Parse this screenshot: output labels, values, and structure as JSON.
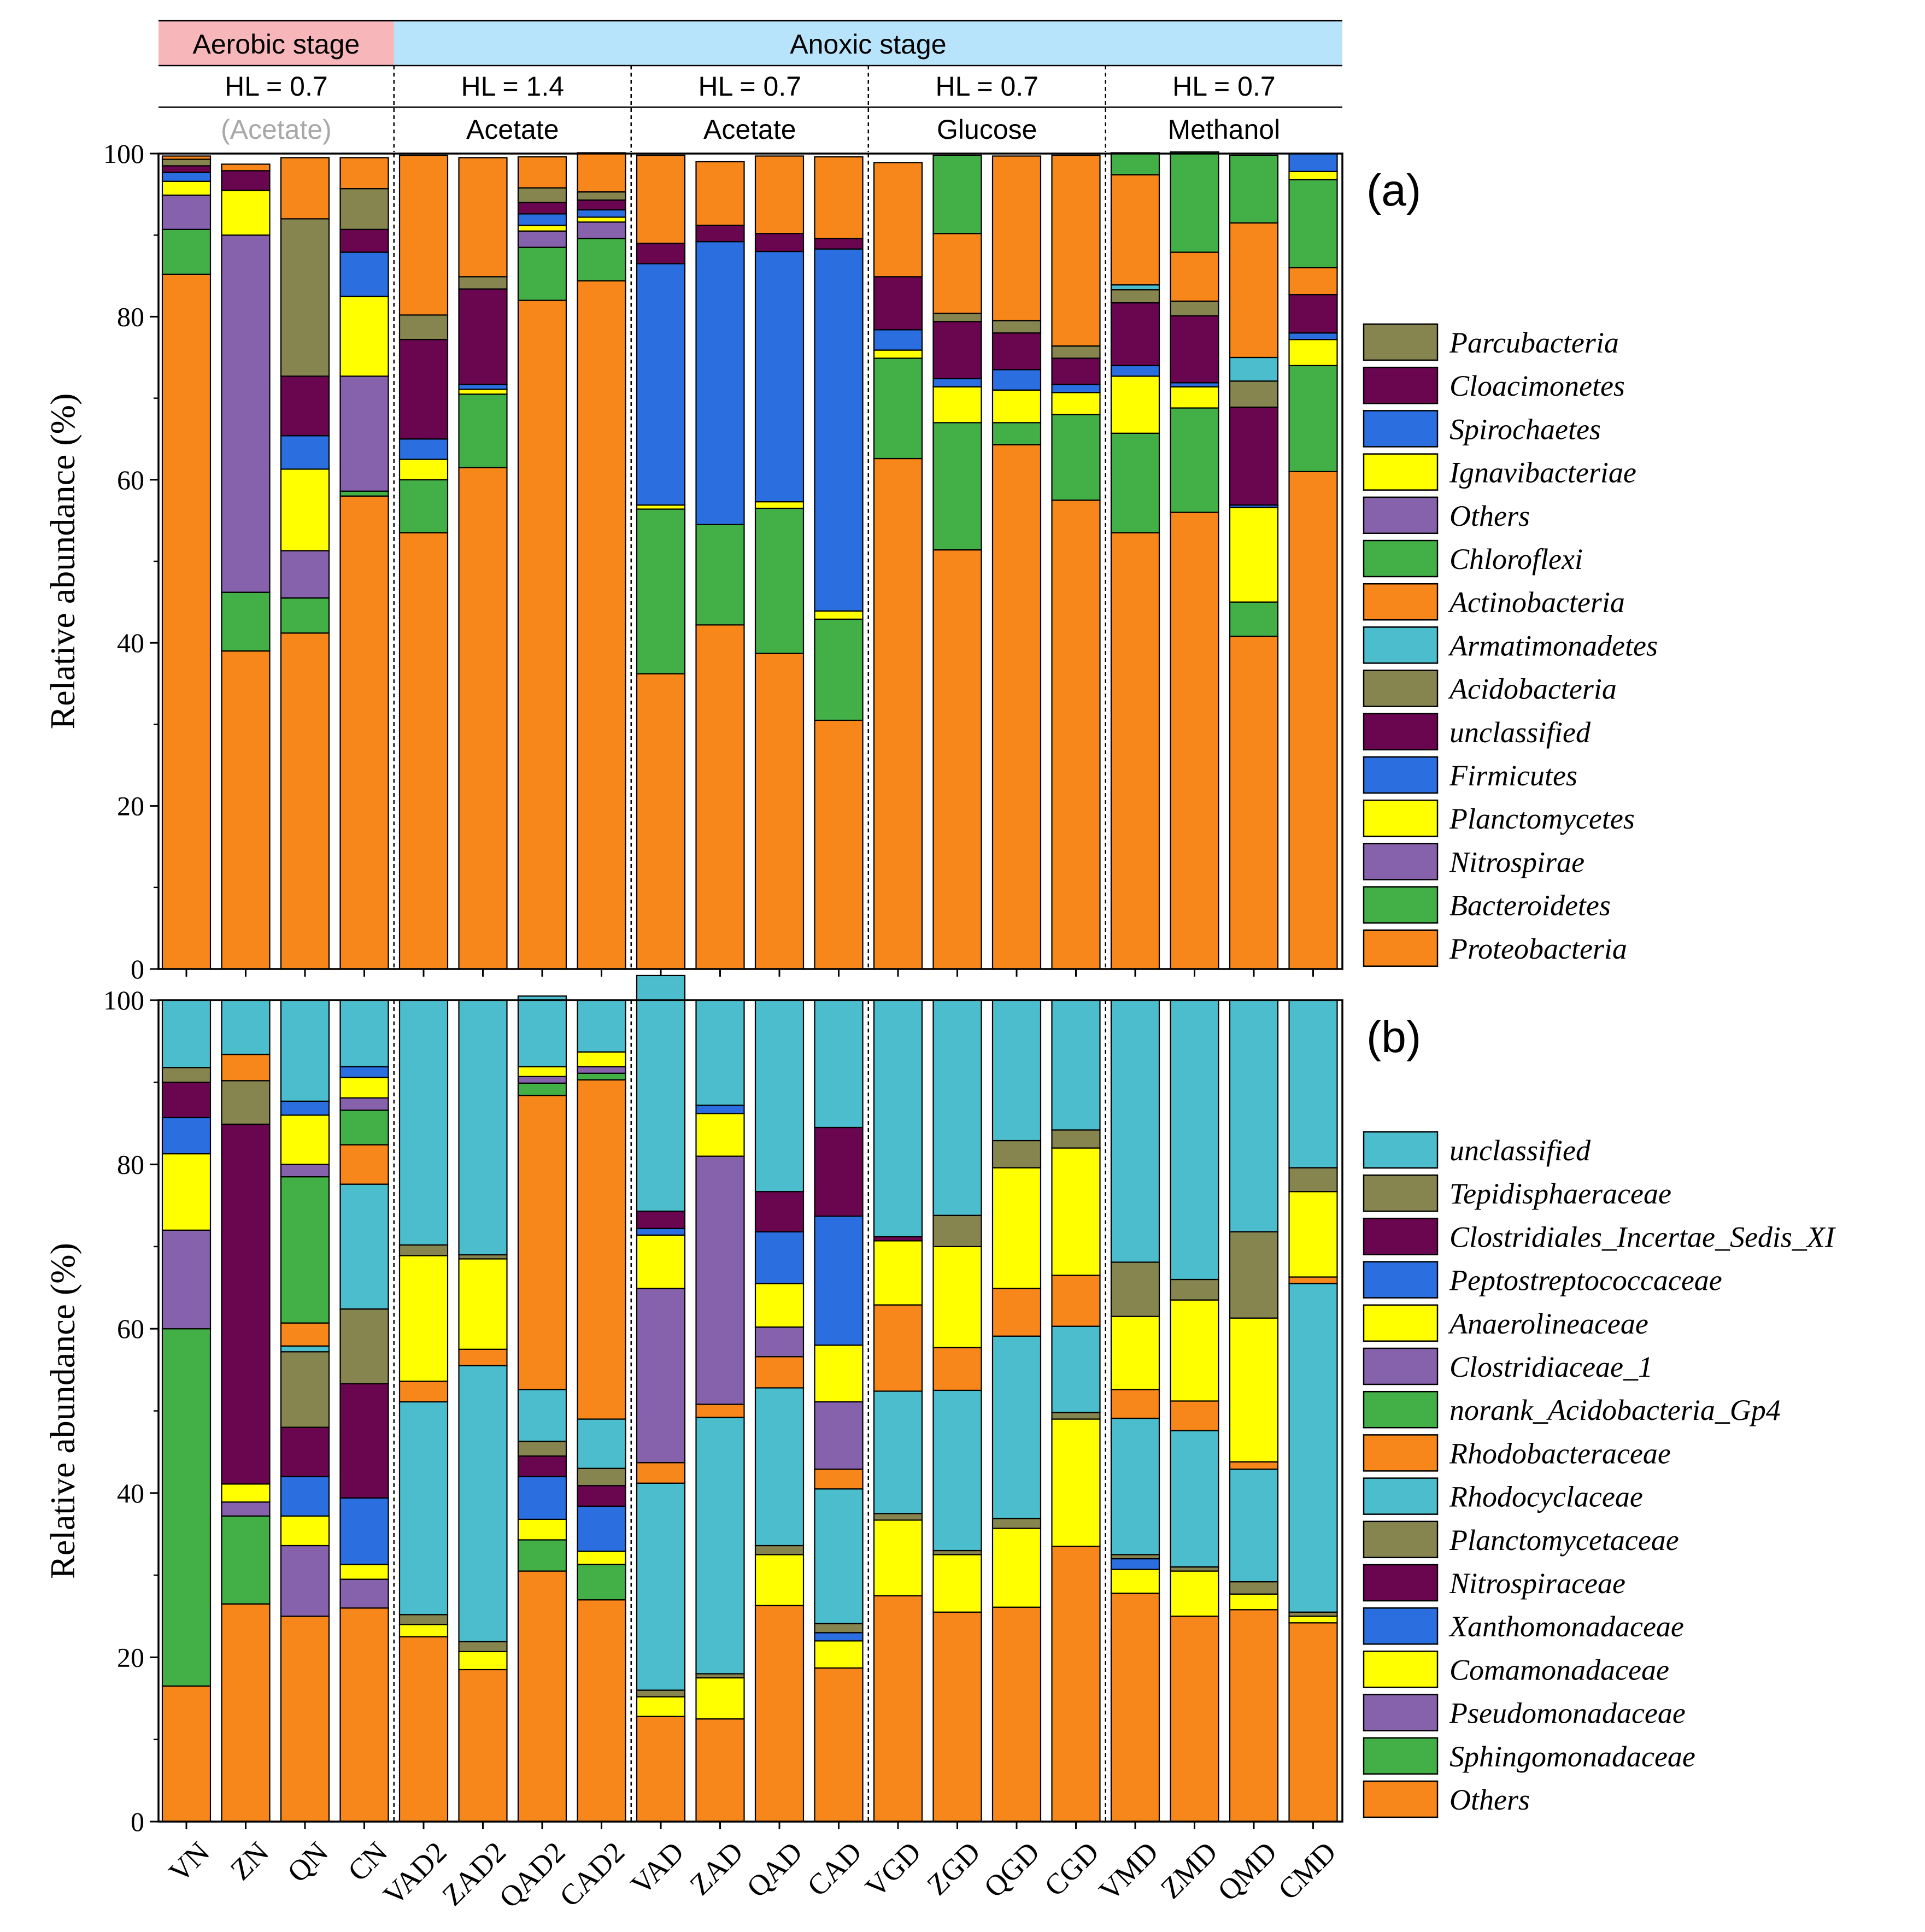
{
  "header": {
    "stages": [
      {
        "label": "Aerobic stage",
        "color": "#f7b6b9"
      },
      {
        "label": "Anoxic stage",
        "color": "#b7e3fb"
      }
    ],
    "groups": [
      {
        "hl": "HL = 0.7",
        "substrate": "(Acetate)",
        "substrate_color": "#a8a8a8"
      },
      {
        "hl": "HL = 1.4",
        "substrate": "Acetate",
        "substrate_color": "#000000"
      },
      {
        "hl": "HL = 0.7",
        "substrate": "Acetate",
        "substrate_color": "#000000"
      },
      {
        "hl": "HL = 0.7",
        "substrate": "Glucose",
        "substrate_color": "#000000"
      },
      {
        "hl": "HL = 0.7",
        "substrate": "Methanol",
        "substrate_color": "#000000"
      }
    ]
  },
  "chart_data": [
    {
      "type": "bar",
      "stacked": true,
      "panel_label": "(a)",
      "ylabel": "Relative abundance (%)",
      "ylim": [
        0,
        100
      ],
      "yticks": [
        0,
        20,
        40,
        60,
        80,
        100
      ],
      "categories": [
        "VN",
        "ZN",
        "QN",
        "CN",
        "VAD2",
        "ZAD2",
        "QAD2",
        "CAD2",
        "VAD",
        "ZAD",
        "QAD",
        "CAD",
        "VGD",
        "ZGD",
        "QGD",
        "CGD",
        "VMD",
        "ZMD",
        "QMD",
        "CMD"
      ],
      "series": [
        {
          "name": "Proteobacteria",
          "color": "#f7861b",
          "values": [
            85.2,
            39.0,
            41.2,
            58.0,
            53.5,
            61.5,
            82.0,
            84.4,
            36.2,
            42.2,
            38.7,
            30.5,
            62.6,
            51.4,
            64.3,
            57.5,
            53.5,
            56.0,
            40.8,
            61.0
          ]
        },
        {
          "name": "Bacteroidetes",
          "color": "#43b047",
          "values": [
            5.5,
            7.2,
            4.3,
            0.6,
            6.5,
            9.0,
            6.5,
            5.2,
            20.2,
            12.3,
            17.8,
            12.4,
            12.3,
            15.6,
            2.7,
            10.5,
            12.2,
            12.8,
            4.2,
            13.0
          ]
        },
        {
          "name": "Nitrospirae",
          "color": "#8762ac",
          "values": [
            4.2,
            43.8,
            5.8,
            14.1,
            0,
            0,
            2.0,
            2.0,
            0,
            0,
            0,
            0,
            0,
            0,
            0,
            0,
            0,
            0,
            0,
            0
          ]
        },
        {
          "name": "Planctomycetes",
          "color": "#ffff00",
          "values": [
            1.7,
            5.5,
            10.0,
            9.8,
            2.5,
            0.6,
            0.7,
            0.6,
            0.5,
            0,
            0.8,
            1.0,
            1.0,
            4.4,
            4.0,
            2.7,
            7.0,
            2.6,
            11.6,
            3.2
          ]
        },
        {
          "name": "Firmicutes",
          "color": "#2a6ee0",
          "values": [
            1.1,
            0,
            4.1,
            5.4,
            2.5,
            0.6,
            1.4,
            0.9,
            29.6,
            34.7,
            30.7,
            44.4,
            2.5,
            1.0,
            2.5,
            1.0,
            1.3,
            0.5,
            0.3,
            0.8
          ]
        },
        {
          "name": "unclassified",
          "color": "#6a0650",
          "values": [
            0.8,
            2.4,
            7.3,
            2.8,
            12.2,
            11.7,
            1.4,
            1.2,
            2.5,
            2.0,
            2.2,
            1.3,
            6.5,
            7.0,
            4.5,
            3.2,
            7.7,
            8.2,
            12.0,
            4.7
          ]
        },
        {
          "name": "Acidobacteria",
          "color": "#868550",
          "values": [
            0.8,
            0,
            19.3,
            5.0,
            3.0,
            1.5,
            1.8,
            1.0,
            0,
            0,
            0,
            0,
            0,
            1.0,
            1.5,
            1.5,
            1.6,
            1.8,
            3.2,
            0
          ]
        },
        {
          "name": "Armatimonadetes",
          "color": "#4bbdcc",
          "values": [
            0,
            0,
            0,
            0,
            0,
            0,
            0,
            0,
            0,
            0,
            0,
            0,
            0,
            0,
            0,
            0,
            0.6,
            0,
            2.9,
            0
          ]
        },
        {
          "name": "Actinobacteria",
          "color": "#f7861b",
          "values": [
            0.4,
            0.8,
            7.5,
            3.8,
            19.6,
            14.6,
            3.8,
            4.8,
            10.8,
            7.8,
            9.5,
            10.0,
            14.0,
            9.8,
            20.2,
            23.4,
            13.5,
            6.0,
            16.5,
            3.3
          ]
        },
        {
          "name": "Chloroflexi",
          "color": "#43b047",
          "values": [
            0,
            0,
            0,
            0,
            0,
            0,
            0,
            0,
            0,
            0,
            0,
            0,
            0,
            9.6,
            0,
            0,
            2.7,
            12.3,
            8.3,
            10.8
          ]
        },
        {
          "name": "Others",
          "color": "#8762ac",
          "values": [
            0,
            0,
            0,
            0,
            0,
            0,
            0,
            0,
            0,
            0,
            0,
            0,
            0,
            0,
            0,
            0,
            0,
            0,
            0,
            0
          ]
        },
        {
          "name": "Ignavibacteriae",
          "color": "#ffff00",
          "values": [
            0,
            0,
            0,
            0,
            0,
            0,
            0,
            0,
            0,
            0,
            0,
            0,
            0,
            0,
            0,
            0,
            0,
            0,
            0,
            1.0
          ]
        },
        {
          "name": "Spirochaetes",
          "color": "#2a6ee0",
          "values": [
            0,
            0,
            0,
            0,
            0,
            0,
            0,
            0,
            0,
            0,
            0,
            0,
            0,
            0,
            0,
            0,
            0,
            0,
            0,
            2.2
          ]
        },
        {
          "name": "Cloacimonetes",
          "color": "#6a0650",
          "values": [
            0,
            0,
            0,
            0,
            0,
            0,
            0,
            0,
            0,
            0,
            0,
            0,
            0,
            0,
            0,
            0,
            0,
            0,
            0,
            0
          ]
        },
        {
          "name": "Parcubacteria",
          "color": "#868550",
          "values": [
            0,
            0,
            0,
            0,
            0,
            0,
            0,
            0,
            0,
            0,
            0,
            0,
            0,
            0,
            0,
            0,
            0,
            0,
            0,
            0
          ]
        }
      ]
    },
    {
      "type": "bar",
      "stacked": true,
      "panel_label": "(b)",
      "ylabel": "Relative abundance (%)",
      "ylim": [
        0,
        100
      ],
      "yticks": [
        0,
        20,
        40,
        60,
        80,
        100
      ],
      "categories": [
        "VN",
        "ZN",
        "QN",
        "CN",
        "VAD2",
        "ZAD2",
        "QAD2",
        "CAD2",
        "VAD",
        "ZAD",
        "QAD",
        "CAD",
        "VGD",
        "ZGD",
        "QGD",
        "CGD",
        "VMD",
        "ZMD",
        "QMD",
        "CMD"
      ],
      "series": [
        {
          "name": "Others",
          "color": "#f7861b",
          "values": [
            16.5,
            26.5,
            25.0,
            26.0,
            22.5,
            18.5,
            30.5,
            27.0,
            12.8,
            12.5,
            26.3,
            18.7,
            27.5,
            25.5,
            26.1,
            33.5,
            27.8,
            25.0,
            25.8,
            24.2
          ]
        },
        {
          "name": "Sphingomonadaceae",
          "color": "#43b047",
          "values": [
            43.5,
            10.7,
            0,
            0,
            0,
            0,
            3.8,
            4.3,
            0,
            0,
            0,
            0,
            0,
            0,
            0,
            0,
            0,
            0,
            0,
            0
          ]
        },
        {
          "name": "Pseudomonadaceae",
          "color": "#8762ac",
          "values": [
            12.0,
            1.7,
            8.6,
            3.5,
            0,
            0,
            0,
            0,
            0,
            0,
            0,
            0,
            0,
            0,
            0,
            0,
            0,
            0,
            0,
            0
          ]
        },
        {
          "name": "Comamonadaceae",
          "color": "#ffff00",
          "values": [
            9.3,
            2.2,
            3.6,
            1.8,
            1.5,
            2.2,
            2.5,
            1.6,
            2.4,
            5.0,
            6.2,
            3.3,
            9.2,
            7.0,
            9.6,
            15.5,
            2.9,
            5.5,
            1.9,
            0.8
          ]
        },
        {
          "name": "Xanthomonadaceae",
          "color": "#2a6ee0",
          "values": [
            4.4,
            0,
            4.8,
            8.1,
            0,
            0,
            5.2,
            5.5,
            0,
            0,
            0,
            1.0,
            0,
            0,
            0,
            0,
            1.3,
            0,
            0,
            0
          ]
        },
        {
          "name": "Nitrospiraceae",
          "color": "#6a0650",
          "values": [
            4.3,
            43.8,
            6.0,
            13.9,
            0,
            0,
            2.5,
            2.5,
            0,
            0,
            0,
            0,
            0,
            0,
            0,
            0,
            0,
            0,
            0,
            0
          ]
        },
        {
          "name": "Planctomycetaceae",
          "color": "#868550",
          "values": [
            1.8,
            5.3,
            9.2,
            9.1,
            1.2,
            1.2,
            1.8,
            2.1,
            0.8,
            0.5,
            1.1,
            1.1,
            0.8,
            0.5,
            1.2,
            0.8,
            0.5,
            0.5,
            1.5,
            0.5
          ]
        },
        {
          "name": "Rhodocyclaceae",
          "color": "#4bbdcc",
          "values": [
            0,
            0,
            0.7,
            15.2,
            25.9,
            33.6,
            6.3,
            6.0,
            25.2,
            31.2,
            19.2,
            16.4,
            14.9,
            19.5,
            22.2,
            10.5,
            16.6,
            16.6,
            13.7,
            40.0
          ]
        },
        {
          "name": "Rhodobacteraceae",
          "color": "#f7861b",
          "values": [
            0,
            3.2,
            2.8,
            4.8,
            2.5,
            2.0,
            35.8,
            41.3,
            2.5,
            1.6,
            3.8,
            2.4,
            10.5,
            5.2,
            5.8,
            6.2,
            3.5,
            3.6,
            0.9,
            0.8
          ]
        },
        {
          "name": "norank_Acidobacteria_Gp4",
          "color": "#43b047",
          "values": [
            0,
            0,
            17.8,
            4.2,
            0,
            0,
            1.5,
            0.8,
            0,
            0,
            0,
            0,
            0,
            0,
            0,
            0,
            0,
            0,
            0,
            0
          ]
        },
        {
          "name": "Clostridiaceae_1",
          "color": "#8762ac",
          "values": [
            0,
            0,
            1.5,
            1.5,
            0,
            0,
            0.8,
            0.8,
            21.2,
            30.2,
            3.6,
            8.2,
            0,
            0,
            0,
            0,
            0,
            0,
            0,
            0
          ]
        },
        {
          "name": "Anaerolineaceae",
          "color": "#ffff00",
          "values": [
            0,
            0,
            6.0,
            2.5,
            15.3,
            11.0,
            1.2,
            1.8,
            6.5,
            5.2,
            5.3,
            6.9,
            7.8,
            12.3,
            14.7,
            15.5,
            8.9,
            12.3,
            17.5,
            10.4
          ]
        },
        {
          "name": "Peptostreptococcaceae",
          "color": "#2a6ee0",
          "values": [
            0,
            0,
            1.7,
            1.3,
            0,
            0,
            0,
            0,
            0.8,
            1.0,
            6.3,
            15.7,
            0,
            0,
            0,
            0,
            0,
            0,
            0,
            0
          ]
        },
        {
          "name": "Clostridiales_Incertae_Sedis_XI",
          "color": "#6a0650",
          "values": [
            0,
            0,
            0,
            0,
            0,
            0,
            0,
            0,
            2.1,
            0,
            4.9,
            10.8,
            0.5,
            0,
            0,
            0,
            0,
            0,
            0,
            0
          ]
        },
        {
          "name": "Tepidisphaeraceae",
          "color": "#868550",
          "values": [
            0,
            0,
            0,
            0,
            1.3,
            0.5,
            0,
            0,
            0,
            0,
            0,
            0,
            0,
            3.8,
            3.3,
            2.2,
            6.6,
            2.5,
            10.5,
            2.9
          ]
        },
        {
          "name": "unclassified",
          "color": "#4bbdcc",
          "values": [
            8.2,
            6.6,
            12.3,
            8.1,
            29.8,
            31.0,
            8.6,
            6.3,
            28.7,
            12.8,
            23.3,
            15.5,
            28.8,
            26.2,
            17.1,
            15.8,
            31.9,
            34.0,
            28.2,
            20.4
          ]
        }
      ]
    }
  ]
}
